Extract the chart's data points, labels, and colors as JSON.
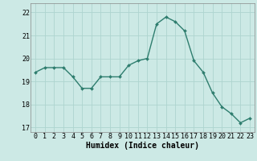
{
  "x": [
    0,
    1,
    2,
    3,
    4,
    5,
    6,
    7,
    8,
    9,
    10,
    11,
    12,
    13,
    14,
    15,
    16,
    17,
    18,
    19,
    20,
    21,
    22,
    23
  ],
  "y": [
    19.4,
    19.6,
    19.6,
    19.6,
    19.2,
    18.7,
    18.7,
    19.2,
    19.2,
    19.2,
    19.7,
    19.9,
    20.0,
    21.5,
    21.8,
    21.6,
    21.2,
    19.9,
    19.4,
    18.5,
    17.9,
    17.6,
    17.2,
    17.4
  ],
  "line_color": "#2e7d6e",
  "marker": "D",
  "marker_size": 2.0,
  "bg_color": "#cce9e5",
  "grid_color": "#aed4cf",
  "xlabel": "Humidex (Indice chaleur)",
  "ylim": [
    16.8,
    22.4
  ],
  "xlim": [
    -0.5,
    23.5
  ],
  "yticks": [
    17,
    18,
    19,
    20,
    21,
    22
  ],
  "xticks": [
    0,
    1,
    2,
    3,
    4,
    5,
    6,
    7,
    8,
    9,
    10,
    11,
    12,
    13,
    14,
    15,
    16,
    17,
    18,
    19,
    20,
    21,
    22,
    23
  ],
  "xlabel_fontsize": 7.0,
  "tick_fontsize": 6.0,
  "linewidth": 1.0
}
